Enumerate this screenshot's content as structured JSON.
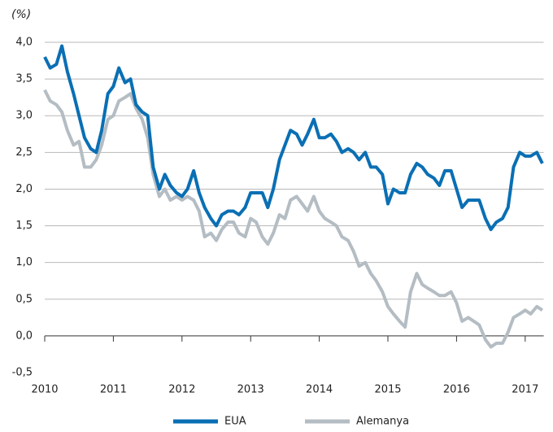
{
  "chart_data": {
    "type": "line",
    "y_unit_label": "(%)",
    "x": [
      2010.0,
      2010.08,
      2010.17,
      2010.25,
      2010.33,
      2010.42,
      2010.5,
      2010.58,
      2010.67,
      2010.75,
      2010.83,
      2010.92,
      2011.0,
      2011.08,
      2011.17,
      2011.25,
      2011.33,
      2011.42,
      2011.5,
      2011.58,
      2011.67,
      2011.75,
      2011.83,
      2011.92,
      2012.0,
      2012.08,
      2012.17,
      2012.25,
      2012.33,
      2012.42,
      2012.5,
      2012.58,
      2012.67,
      2012.75,
      2012.83,
      2012.92,
      2013.0,
      2013.08,
      2013.17,
      2013.25,
      2013.33,
      2013.42,
      2013.5,
      2013.58,
      2013.67,
      2013.75,
      2013.83,
      2013.92,
      2014.0,
      2014.08,
      2014.17,
      2014.25,
      2014.33,
      2014.42,
      2014.5,
      2014.58,
      2014.67,
      2014.75,
      2014.83,
      2014.92,
      2015.0,
      2015.08,
      2015.17,
      2015.25,
      2015.33,
      2015.42,
      2015.5,
      2015.58,
      2015.67,
      2015.75,
      2015.83,
      2015.92,
      2016.0,
      2016.08,
      2016.17,
      2016.25,
      2016.33,
      2016.42,
      2016.5,
      2016.58,
      2016.67,
      2016.75,
      2016.83,
      2016.92,
      2017.0,
      2017.08,
      2017.17,
      2017.25
    ],
    "series": [
      {
        "name": "EUA",
        "color": "#0a6fb4",
        "values": [
          3.8,
          3.65,
          3.7,
          3.95,
          3.6,
          3.3,
          3.0,
          2.7,
          2.55,
          2.5,
          2.8,
          3.3,
          3.4,
          3.65,
          3.45,
          3.5,
          3.15,
          3.05,
          3.0,
          2.3,
          2.0,
          2.2,
          2.05,
          1.95,
          1.9,
          2.0,
          2.25,
          1.95,
          1.75,
          1.6,
          1.5,
          1.65,
          1.7,
          1.7,
          1.65,
          1.75,
          1.95,
          1.95,
          1.95,
          1.75,
          2.0,
          2.4,
          2.6,
          2.8,
          2.75,
          2.6,
          2.75,
          2.95,
          2.7,
          2.7,
          2.75,
          2.65,
          2.5,
          2.55,
          2.5,
          2.4,
          2.5,
          2.3,
          2.3,
          2.2,
          1.8,
          2.0,
          1.95,
          1.95,
          2.2,
          2.35,
          2.3,
          2.2,
          2.15,
          2.05,
          2.25,
          2.25,
          2.0,
          1.75,
          1.85,
          1.85,
          1.85,
          1.6,
          1.45,
          1.55,
          1.6,
          1.75,
          2.3,
          2.5,
          2.45,
          2.45,
          2.5,
          2.35
        ]
      },
      {
        "name": "Alemanya",
        "color": "#b4bdc3",
        "values": [
          3.35,
          3.2,
          3.15,
          3.05,
          2.8,
          2.6,
          2.65,
          2.3,
          2.3,
          2.4,
          2.6,
          2.95,
          3.0,
          3.2,
          3.25,
          3.3,
          3.1,
          2.95,
          2.7,
          2.2,
          1.9,
          2.0,
          1.85,
          1.9,
          1.85,
          1.9,
          1.85,
          1.7,
          1.35,
          1.4,
          1.3,
          1.45,
          1.55,
          1.55,
          1.4,
          1.35,
          1.6,
          1.55,
          1.35,
          1.25,
          1.4,
          1.65,
          1.6,
          1.85,
          1.9,
          1.8,
          1.7,
          1.9,
          1.7,
          1.6,
          1.55,
          1.5,
          1.35,
          1.3,
          1.15,
          0.95,
          1.0,
          0.85,
          0.75,
          0.6,
          0.4,
          0.3,
          0.2,
          0.12,
          0.6,
          0.85,
          0.7,
          0.65,
          0.6,
          0.55,
          0.55,
          0.6,
          0.45,
          0.2,
          0.25,
          0.2,
          0.15,
          -0.05,
          -0.15,
          -0.1,
          -0.1,
          0.05,
          0.25,
          0.3,
          0.35,
          0.3,
          0.4,
          0.35
        ]
      }
    ],
    "xlim": [
      2010,
      2017.27
    ],
    "xticks": [
      2010,
      2011,
      2012,
      2013,
      2014,
      2015,
      2016,
      2017
    ],
    "ylim": [
      -0.5,
      4.0
    ],
    "yticks": [
      {
        "value": -0.5,
        "label": "-0,5"
      },
      {
        "value": 0,
        "label": "0,0"
      },
      {
        "value": 0.5,
        "label": "0,5"
      },
      {
        "value": 1.0,
        "label": "1,0"
      },
      {
        "value": 1.5,
        "label": "1,5"
      },
      {
        "value": 2.0,
        "label": "2,0"
      },
      {
        "value": 2.5,
        "label": "2,5"
      },
      {
        "value": 3.0,
        "label": "3,0"
      },
      {
        "value": 3.5,
        "label": "3,5"
      },
      {
        "value": 4.0,
        "label": "4,0"
      }
    ],
    "grid": true,
    "legend": "bottom"
  }
}
